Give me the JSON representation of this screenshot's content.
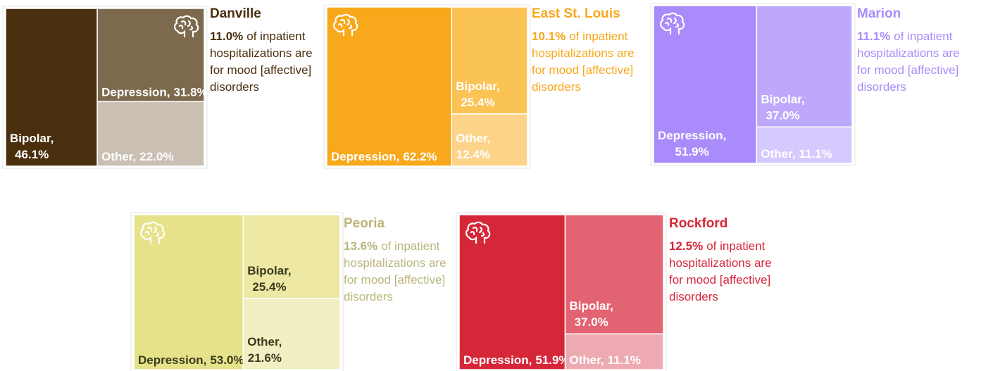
{
  "chart_data": [
    {
      "type": "treemap",
      "title": "Danville",
      "annotation_value": "11.0%",
      "annotation_text": "of inpatient hospitalizations are for mood [affective] disorders",
      "title_color": "#4a2f0e",
      "text_color": "#4a2f0e",
      "label_color": "#ffffff",
      "categories": [
        "Bipolar,",
        "Depression,",
        "Other,"
      ],
      "values": [
        46.1,
        31.8,
        22.0
      ],
      "value_labels": [
        "46.1%",
        "31.8%",
        "22.0%"
      ],
      "colors": [
        "#4a2f0e",
        "#7d6a4e",
        "#c9bfb3"
      ]
    },
    {
      "type": "treemap",
      "title": "East St. Louis",
      "annotation_value": "10.1%",
      "annotation_text": "of inpatient hospitalizations are for mood [affective] disorders",
      "title_color": "#f8a81b",
      "text_color": "#f8a81b",
      "label_color": "#ffffff",
      "categories": [
        "Depression,",
        "Bipolar,",
        "Other,"
      ],
      "values": [
        62.2,
        25.4,
        12.4
      ],
      "value_labels": [
        "62.2%",
        "25.4%",
        "12.4%"
      ],
      "colors": [
        "#f8a81b",
        "#fbc254",
        "#fdd38a"
      ]
    },
    {
      "type": "treemap",
      "title": "Marion",
      "annotation_value": "11.1%",
      "annotation_text": "of inpatient hospitalizations are for mood [affective] disorders",
      "title_color": "#a98bfb",
      "text_color": "#a98bfb",
      "label_color": "#ffffff",
      "categories": [
        "Depression,",
        "Bipolar,",
        "Other,"
      ],
      "values": [
        51.9,
        37.0,
        11.1
      ],
      "value_labels": [
        "51.9%",
        "37.0%",
        "11.1%"
      ],
      "colors": [
        "#a98bfb",
        "#bea8fc",
        "#d6c9fd"
      ]
    },
    {
      "type": "treemap",
      "title": "Peoria",
      "annotation_value": "13.6%",
      "annotation_text": "of inpatient hospitalizations are for mood [affective] disorders",
      "title_color": "#bab67c",
      "text_color": "#bab67c",
      "label_color": "#3a3a1e",
      "categories": [
        "Depression,",
        "Bipolar,",
        "Other,"
      ],
      "values": [
        53.0,
        25.4,
        21.6
      ],
      "value_labels": [
        "53.0%",
        "25.4%",
        "21.6%"
      ],
      "colors": [
        "#e6e28a",
        "#ede9a4",
        "#f2efc2"
      ]
    },
    {
      "type": "treemap",
      "title": "Rockford",
      "annotation_value": "12.5%",
      "annotation_text": "of inpatient hospitalizations are for mood [affective] disorders",
      "title_color": "#d62739",
      "text_color": "#d62739",
      "label_color": "#ffffff",
      "categories": [
        "Depression,",
        "Bipolar,",
        "Other,"
      ],
      "values": [
        51.9,
        37.0,
        11.1
      ],
      "value_labels": [
        "51.9%",
        "37.0%",
        "11.1%"
      ],
      "colors": [
        "#d62739",
        "#e26371",
        "#eeaab2"
      ]
    }
  ]
}
